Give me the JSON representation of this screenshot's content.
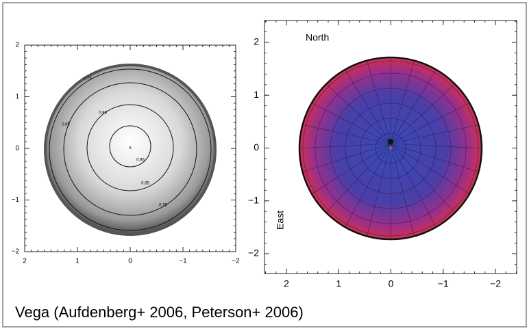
{
  "left_panel": {
    "xticks": [
      "2",
      "1",
      "0",
      "−1",
      "−2"
    ],
    "yticks": [
      "2",
      "1",
      "0",
      "−1",
      "−2"
    ],
    "contour_labels": [
      "0.75",
      "0.85",
      "0.95",
      "0.95",
      "0.85",
      "0.75"
    ]
  },
  "right_panel": {
    "xticks": [
      "2",
      "1",
      "0",
      "−1",
      "−2"
    ],
    "yticks": [
      "2",
      "1",
      "0",
      "−1",
      "−2"
    ],
    "north_label": "North",
    "east_label": "East"
  },
  "caption": "Vega (Aufdenberg+ 2006, Peterson+ 2006)"
}
